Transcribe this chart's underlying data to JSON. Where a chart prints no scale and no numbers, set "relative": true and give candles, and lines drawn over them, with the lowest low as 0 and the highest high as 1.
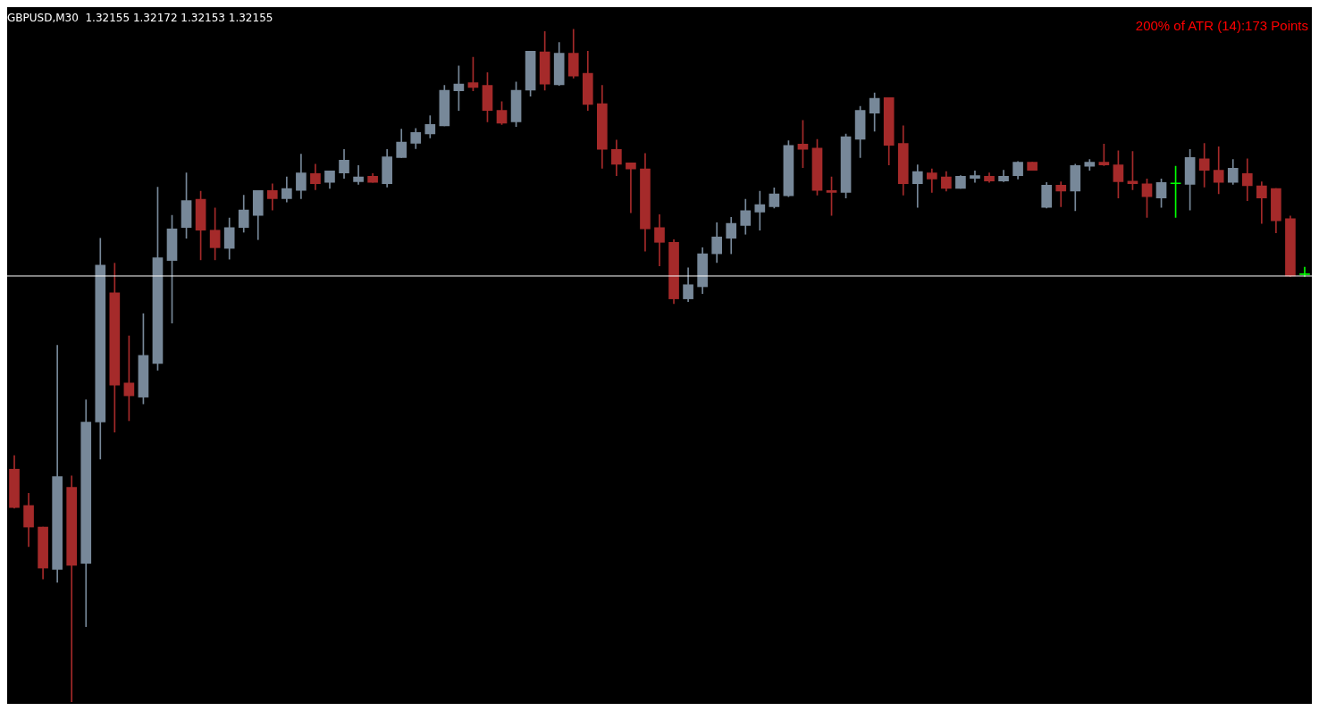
{
  "chart_data": {
    "type": "candlestick",
    "title": "GBPUSD,M30  1.32155 1.32172 1.32153 1.32155",
    "relative": true,
    "annotations": [
      "200% of ATR (14):173 Points"
    ],
    "ref_lines": [
      {
        "axis": "y",
        "value": 0.633,
        "color": "#ffffff"
      }
    ],
    "categories": [
      null,
      null,
      null,
      null,
      null,
      null,
      null,
      null,
      null,
      null,
      null,
      null,
      null,
      null,
      null,
      null,
      null,
      null,
      null,
      null,
      null,
      null,
      null,
      null,
      null,
      null,
      null,
      null,
      null,
      null,
      null,
      null,
      null,
      null,
      null,
      null,
      null,
      null,
      null,
      null,
      null,
      null,
      null,
      null,
      null,
      null,
      null,
      null,
      null,
      null,
      null,
      null,
      null,
      null,
      null,
      null,
      null,
      null,
      null,
      null,
      null,
      null,
      null,
      null,
      null,
      null,
      null,
      null,
      null,
      null,
      null,
      null,
      null,
      null,
      null,
      null,
      null,
      null,
      null,
      null,
      null,
      null,
      null,
      null,
      null,
      null,
      null,
      null,
      null,
      null,
      null
    ],
    "ohlc": [
      [
        0.346,
        0.366,
        0.288,
        0.289
      ],
      [
        0.292,
        0.31,
        0.231,
        0.26
      ],
      [
        0.26,
        0.26,
        0.183,
        0.199
      ],
      [
        0.197,
        0.53,
        0.178,
        0.335
      ],
      [
        0.319,
        0.336,
        0,
        0.203
      ],
      [
        0.206,
        0.449,
        0.112,
        0.416
      ],
      [
        0.416,
        0.689,
        0.361,
        0.649
      ],
      [
        0.608,
        0.652,
        0.401,
        0.471
      ],
      [
        0.474,
        0.544,
        0.418,
        0.455
      ],
      [
        0.453,
        0.577,
        0.443,
        0.515
      ],
      [
        0.503,
        0.765,
        0.493,
        0.66
      ],
      [
        0.656,
        0.723,
        0.563,
        0.703
      ],
      [
        0.705,
        0.786,
        0.689,
        0.745
      ],
      [
        0.747,
        0.759,
        0.657,
        0.701
      ],
      [
        0.701,
        0.734,
        0.657,
        0.675
      ],
      [
        0.674,
        0.719,
        0.658,
        0.705
      ],
      [
        0.705,
        0.753,
        0.698,
        0.731
      ],
      [
        0.723,
        0.76,
        0.687,
        0.76
      ],
      [
        0.76,
        0.77,
        0.731,
        0.748
      ],
      [
        0.748,
        0.78,
        0.743,
        0.763
      ],
      [
        0.76,
        0.814,
        0.748,
        0.786
      ],
      [
        0.785,
        0.799,
        0.761,
        0.77
      ],
      [
        0.772,
        0.789,
        0.763,
        0.789
      ],
      [
        0.786,
        0.821,
        0.778,
        0.805
      ],
      [
        0.773,
        0.797,
        0.769,
        0.78
      ],
      [
        0.781,
        0.785,
        0.772,
        0.772
      ],
      [
        0.77,
        0.821,
        0.765,
        0.81
      ],
      [
        0.809,
        0.851,
        0.809,
        0.832
      ],
      [
        0.83,
        0.852,
        0.822,
        0.846
      ],
      [
        0.844,
        0.871,
        0.838,
        0.858
      ],
      [
        0.856,
        0.916,
        0.856,
        0.909
      ],
      [
        0.908,
        0.945,
        0.879,
        0.918
      ],
      [
        0.92,
        0.958,
        0.908,
        0.913
      ],
      [
        0.916,
        0.935,
        0.862,
        0.879
      ],
      [
        0.879,
        0.892,
        0.858,
        0.86
      ],
      [
        0.862,
        0.921,
        0.855,
        0.909
      ],
      [
        0.909,
        0.967,
        0.9,
        0.967
      ],
      [
        0.966,
        0.996,
        0.909,
        0.918
      ],
      [
        0.917,
        0.98,
        0.916,
        0.964
      ],
      [
        0.964,
        1,
        0.927,
        0.93
      ],
      [
        0.934,
        0.967,
        0.879,
        0.888
      ],
      [
        0.889,
        0.916,
        0.793,
        0.821
      ],
      [
        0.821,
        0.835,
        0.782,
        0.799
      ],
      [
        0.801,
        0.801,
        0.727,
        0.792
      ],
      [
        0.792,
        0.815,
        0.67,
        0.703
      ],
      [
        0.705,
        0.724,
        0.648,
        0.683
      ],
      [
        0.683,
        0.687,
        0.592,
        0.599
      ],
      [
        0.599,
        0.645,
        0.595,
        0.62
      ],
      [
        0.617,
        0.675,
        0.607,
        0.666
      ],
      [
        0.666,
        0.712,
        0.653,
        0.691
      ],
      [
        0.689,
        0.72,
        0.666,
        0.711
      ],
      [
        0.708,
        0.747,
        0.695,
        0.73
      ],
      [
        0.728,
        0.759,
        0.701,
        0.739
      ],
      [
        0.736,
        0.764,
        0.734,
        0.755
      ],
      [
        0.752,
        0.834,
        0.751,
        0.827
      ],
      [
        0.829,
        0.864,
        0.794,
        0.821
      ],
      [
        0.823,
        0.836,
        0.753,
        0.76
      ],
      [
        0.76,
        0.78,
        0.723,
        0.757
      ],
      [
        0.757,
        0.844,
        0.749,
        0.84
      ],
      [
        0.836,
        0.885,
        0.809,
        0.879
      ],
      [
        0.875,
        0.905,
        0.848,
        0.897
      ],
      [
        0.898,
        0.898,
        0.798,
        0.827
      ],
      [
        0.83,
        0.856,
        0.753,
        0.77
      ],
      [
        0.77,
        0.798,
        0.735,
        0.788
      ],
      [
        0.786,
        0.792,
        0.757,
        0.777
      ],
      [
        0.78,
        0.788,
        0.759,
        0.763
      ],
      [
        0.763,
        0.782,
        0.763,
        0.781
      ],
      [
        0.778,
        0.789,
        0.772,
        0.782
      ],
      [
        0.781,
        0.786,
        0.772,
        0.774
      ],
      [
        0.774,
        0.79,
        0.773,
        0.781
      ],
      [
        0.782,
        0.803,
        0.777,
        0.802
      ],
      [
        0.802,
        0.802,
        0.79,
        0.79
      ],
      [
        0.735,
        0.772,
        0.734,
        0.768
      ],
      [
        0.768,
        0.773,
        0.736,
        0.759
      ],
      [
        0.759,
        0.799,
        0.73,
        0.797
      ],
      [
        0.796,
        0.806,
        0.79,
        0.802
      ],
      [
        0.802,
        0.829,
        0.797,
        0.798
      ],
      [
        0.798,
        0.819,
        0.749,
        0.773
      ],
      [
        0.774,
        0.818,
        0.761,
        0.77
      ],
      [
        0.77,
        0.777,
        0.72,
        0.751
      ],
      [
        0.749,
        0.777,
        0.735,
        0.772
      ],
      [
        0.77,
        0.796,
        0.72,
        0.77
      ],
      [
        0.769,
        0.821,
        0.731,
        0.809
      ],
      [
        0.807,
        0.83,
        0.765,
        0.79
      ],
      [
        0.79,
        0.825,
        0.755,
        0.772
      ],
      [
        0.772,
        0.806,
        0.769,
        0.793
      ],
      [
        0.785,
        0.807,
        0.745,
        0.767
      ],
      [
        0.767,
        0.773,
        0.711,
        0.749
      ],
      [
        0.763,
        0.763,
        0.697,
        0.715
      ],
      [
        0.718,
        0.722,
        0.632,
        0.633
      ],
      [
        0.635,
        0.646,
        0.632,
        0.635
      ]
    ],
    "colors": [
      "#a52a2a",
      "#a52a2a",
      "#a52a2a",
      "#778899",
      "#a52a2a",
      "#778899",
      "#778899",
      "#a52a2a",
      "#a52a2a",
      "#778899",
      "#778899",
      "#778899",
      "#778899",
      "#a52a2a",
      "#a52a2a",
      "#778899",
      "#778899",
      "#778899",
      "#a52a2a",
      "#778899",
      "#778899",
      "#a52a2a",
      "#778899",
      "#778899",
      "#778899",
      "#a52a2a",
      "#778899",
      "#778899",
      "#778899",
      "#778899",
      "#778899",
      "#778899",
      "#a52a2a",
      "#a52a2a",
      "#a52a2a",
      "#778899",
      "#778899",
      "#a52a2a",
      "#778899",
      "#a52a2a",
      "#a52a2a",
      "#a52a2a",
      "#a52a2a",
      "#a52a2a",
      "#a52a2a",
      "#a52a2a",
      "#a52a2a",
      "#778899",
      "#778899",
      "#778899",
      "#778899",
      "#778899",
      "#778899",
      "#778899",
      "#778899",
      "#a52a2a",
      "#a52a2a",
      "#a52a2a",
      "#778899",
      "#778899",
      "#778899",
      "#a52a2a",
      "#a52a2a",
      "#778899",
      "#a52a2a",
      "#a52a2a",
      "#778899",
      "#778899",
      "#a52a2a",
      "#778899",
      "#778899",
      "#a52a2a",
      "#778899",
      "#a52a2a",
      "#778899",
      "#778899",
      "#a52a2a",
      "#a52a2a",
      "#a52a2a",
      "#a52a2a",
      "#778899",
      "#00ff00",
      "#778899",
      "#a52a2a",
      "#a52a2a",
      "#778899",
      "#a52a2a",
      "#a52a2a",
      "#a52a2a",
      "#a52a2a",
      "#00ff00"
    ]
  }
}
